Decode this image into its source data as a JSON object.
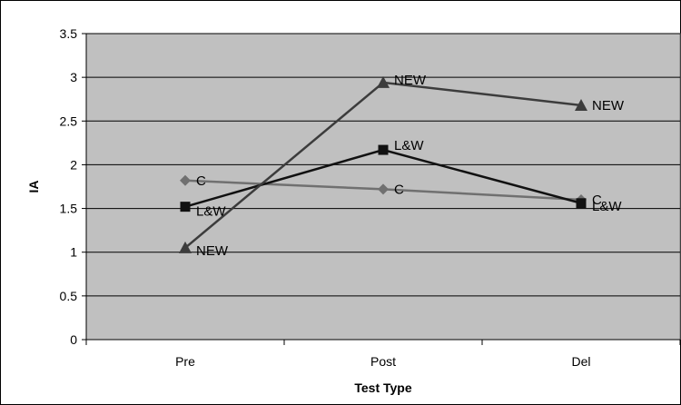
{
  "chart_data": {
    "type": "line",
    "title": "",
    "xlabel": "Test Type",
    "ylabel": "IA",
    "categories": [
      "Pre",
      "Post",
      "Del"
    ],
    "ylim": [
      0,
      3.5
    ],
    "yticks": [
      "0",
      "0.5",
      "1",
      "1.5",
      "2",
      "2.5",
      "3",
      "3.5"
    ],
    "grid": true,
    "legend": "none",
    "plot_background": "#c0c0c0",
    "series": [
      {
        "name": "C",
        "values": [
          1.82,
          1.72,
          1.6
        ],
        "labels": [
          "C",
          "C",
          "C"
        ],
        "marker": "diamond",
        "color": "#707070"
      },
      {
        "name": "L&W",
        "values": [
          1.52,
          2.17,
          1.56
        ],
        "labels": [
          "L&W",
          "L&W",
          "L&W"
        ],
        "marker": "square",
        "color": "#111111"
      },
      {
        "name": "NEW",
        "values": [
          1.05,
          2.94,
          2.68
        ],
        "labels": [
          "NEW",
          "NEW",
          "NEW"
        ],
        "marker": "triangle",
        "color": "#3c3c3c"
      }
    ]
  }
}
